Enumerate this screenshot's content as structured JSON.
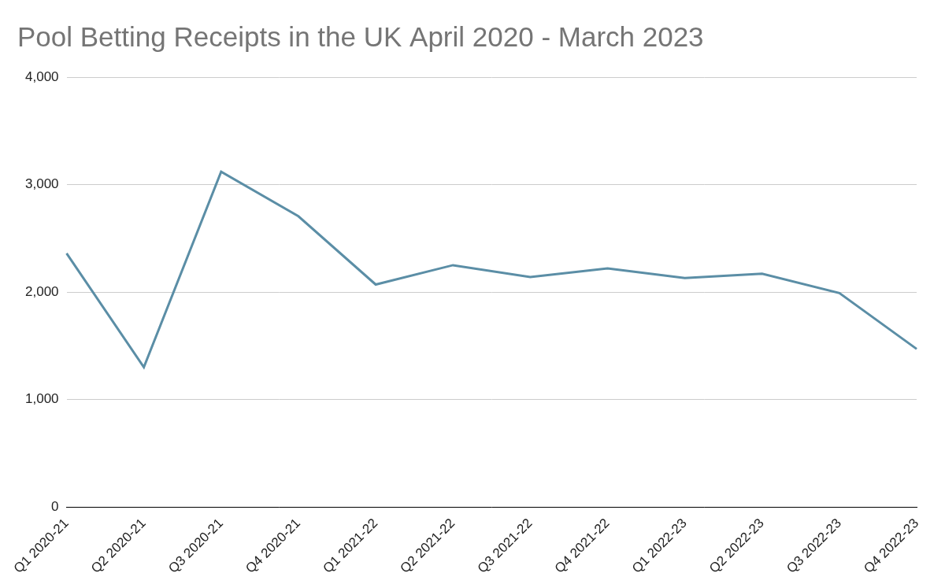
{
  "chart_data": {
    "type": "line",
    "title": "Pool Betting Receipts in the UK April 2020 - March 2023",
    "categories": [
      "Q1 2020-21",
      "Q2 2020-21",
      "Q3 2020-21",
      "Q4 2020-21",
      "Q1 2021-22",
      "Q2 2021-22",
      "Q3 2021-22",
      "Q4 2021-22",
      "Q1 2022-23",
      "Q2 2022-23",
      "Q3 2022-23",
      "Q4 2022-23"
    ],
    "values": [
      2360,
      1300,
      3120,
      2705,
      2070,
      2250,
      2140,
      2220,
      2130,
      2170,
      1990,
      1470
    ],
    "color": "#5b8ea6",
    "ylim": [
      0,
      4000
    ],
    "yticks": [
      0,
      {
        "value": 1000,
        "label": "1,000"
      },
      {
        "value": 2000,
        "label": "2,000"
      },
      {
        "value": 3000,
        "label": "3,000"
      },
      {
        "value": 4000,
        "label": "4,000"
      }
    ],
    "grid": true
  }
}
